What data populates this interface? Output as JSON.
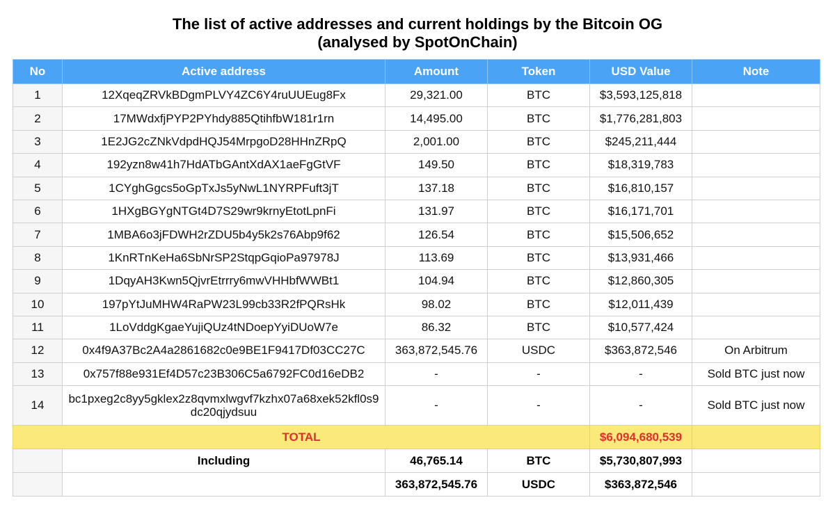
{
  "title": {
    "line1": "The list of active addresses and current holdings by the Bitcoin OG",
    "line2": "(analysed by SpotOnChain)"
  },
  "table": {
    "headers": [
      "No",
      "Active address",
      "Amount",
      "Token",
      "USD Value",
      "Note"
    ],
    "rows": [
      {
        "no": "1",
        "address": "12XqeqZRVkBDgmPLVY4ZC6Y4ruUUEug8Fx",
        "amount": "29,321.00",
        "token": "BTC",
        "usd": "$3,593,125,818",
        "note": ""
      },
      {
        "no": "2",
        "address": "17MWdxfjPYP2PYhdy885QtihfbW181r1rn",
        "amount": "14,495.00",
        "token": "BTC",
        "usd": "$1,776,281,803",
        "note": ""
      },
      {
        "no": "3",
        "address": "1E2JG2cZNkVdpdHQJ54MrpgoD28HHnZRpQ",
        "amount": "2,001.00",
        "token": "BTC",
        "usd": "$245,211,444",
        "note": ""
      },
      {
        "no": "4",
        "address": "192yzn8w41h7HdATbGAntXdAX1aeFgGtVF",
        "amount": "149.50",
        "token": "BTC",
        "usd": "$18,319,783",
        "note": ""
      },
      {
        "no": "5",
        "address": "1CYghGgcs5oGpTxJs5yNwL1NYRPFuft3jT",
        "amount": "137.18",
        "token": "BTC",
        "usd": "$16,810,157",
        "note": ""
      },
      {
        "no": "6",
        "address": "1HXgBGYgNTGt4D7S29wr9krnyEtotLpnFi",
        "amount": "131.97",
        "token": "BTC",
        "usd": "$16,171,701",
        "note": ""
      },
      {
        "no": "7",
        "address": "1MBA6o3jFDWH2rZDU5b4y5k2s76Abp9f62",
        "amount": "126.54",
        "token": "BTC",
        "usd": "$15,506,652",
        "note": ""
      },
      {
        "no": "8",
        "address": "1KnRTnKeHa6SbNrSP2StqpGqioPa97978J",
        "amount": "113.69",
        "token": "BTC",
        "usd": "$13,931,466",
        "note": ""
      },
      {
        "no": "9",
        "address": "1DqyAH3Kwn5QjvrEtrrry6mwVHHbfWWBt1",
        "amount": "104.94",
        "token": "BTC",
        "usd": "$12,860,305",
        "note": ""
      },
      {
        "no": "10",
        "address": "197pYtJuMHW4RaPW23L99cb33R2fPQRsHk",
        "amount": "98.02",
        "token": "BTC",
        "usd": "$12,011,439",
        "note": ""
      },
      {
        "no": "11",
        "address": "1LoVddgKgaeYujiQUz4tNDoepYyiDUoW7e",
        "amount": "86.32",
        "token": "BTC",
        "usd": "$10,577,424",
        "note": ""
      },
      {
        "no": "12",
        "address": "0x4f9A37Bc2A4a2861682c0e9BE1F9417Df03CC27C",
        "amount": "363,872,545.76",
        "token": "USDC",
        "usd": "$363,872,546",
        "note": "On Arbitrum"
      },
      {
        "no": "13",
        "address": "0x757f88e931Ef4D57c23B306C5a6792FC0d16eDB2",
        "amount": "-",
        "token": "-",
        "usd": "-",
        "note": "Sold BTC just now"
      },
      {
        "no": "14",
        "address": "bc1pxeg2c8yy5gklex2z8qvmxlwgvf7kzhx07a68xek52kfl0s9dc20qjydsuu",
        "amount": "-",
        "token": "-",
        "usd": "-",
        "note": "Sold BTC just now"
      }
    ],
    "total": {
      "label": "TOTAL",
      "usd": "$6,094,680,539"
    },
    "including": {
      "label": "Including",
      "btc_amount": "46,765.14",
      "btc_token": "BTC",
      "btc_usd": "$5,730,807,993",
      "usdc_amount": "363,872,545.76",
      "usdc_token": "USDC",
      "usdc_usd": "$363,872,546"
    }
  },
  "colors": {
    "header_bg": "#4aa3f5",
    "total_bg": "#fbe97a",
    "total_text": "#e02f2f"
  }
}
